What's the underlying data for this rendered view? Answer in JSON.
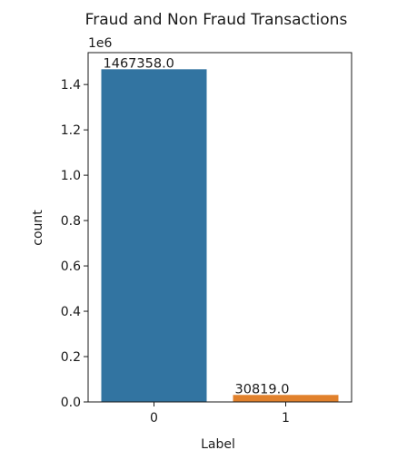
{
  "chart_data": {
    "type": "bar",
    "title": "Fraud and Non Fraud Transactions",
    "xlabel": "Label",
    "ylabel": "count",
    "y_offset_label": "1e6",
    "categories": [
      "0",
      "1"
    ],
    "values": [
      1467358,
      30819
    ],
    "data_labels": [
      "1467358.0",
      "30819.0"
    ],
    "colors": [
      "#3274a1",
      "#e1812c"
    ],
    "ylim": [
      0,
      1540726
    ],
    "y_tick_values": [
      0,
      200000,
      400000,
      600000,
      800000,
      1000000,
      1200000,
      1400000
    ],
    "y_tick_labels": [
      "0.0",
      "0.2",
      "0.4",
      "0.6",
      "0.8",
      "1.0",
      "1.2",
      "1.4"
    ],
    "grid": false,
    "legend": "none"
  }
}
